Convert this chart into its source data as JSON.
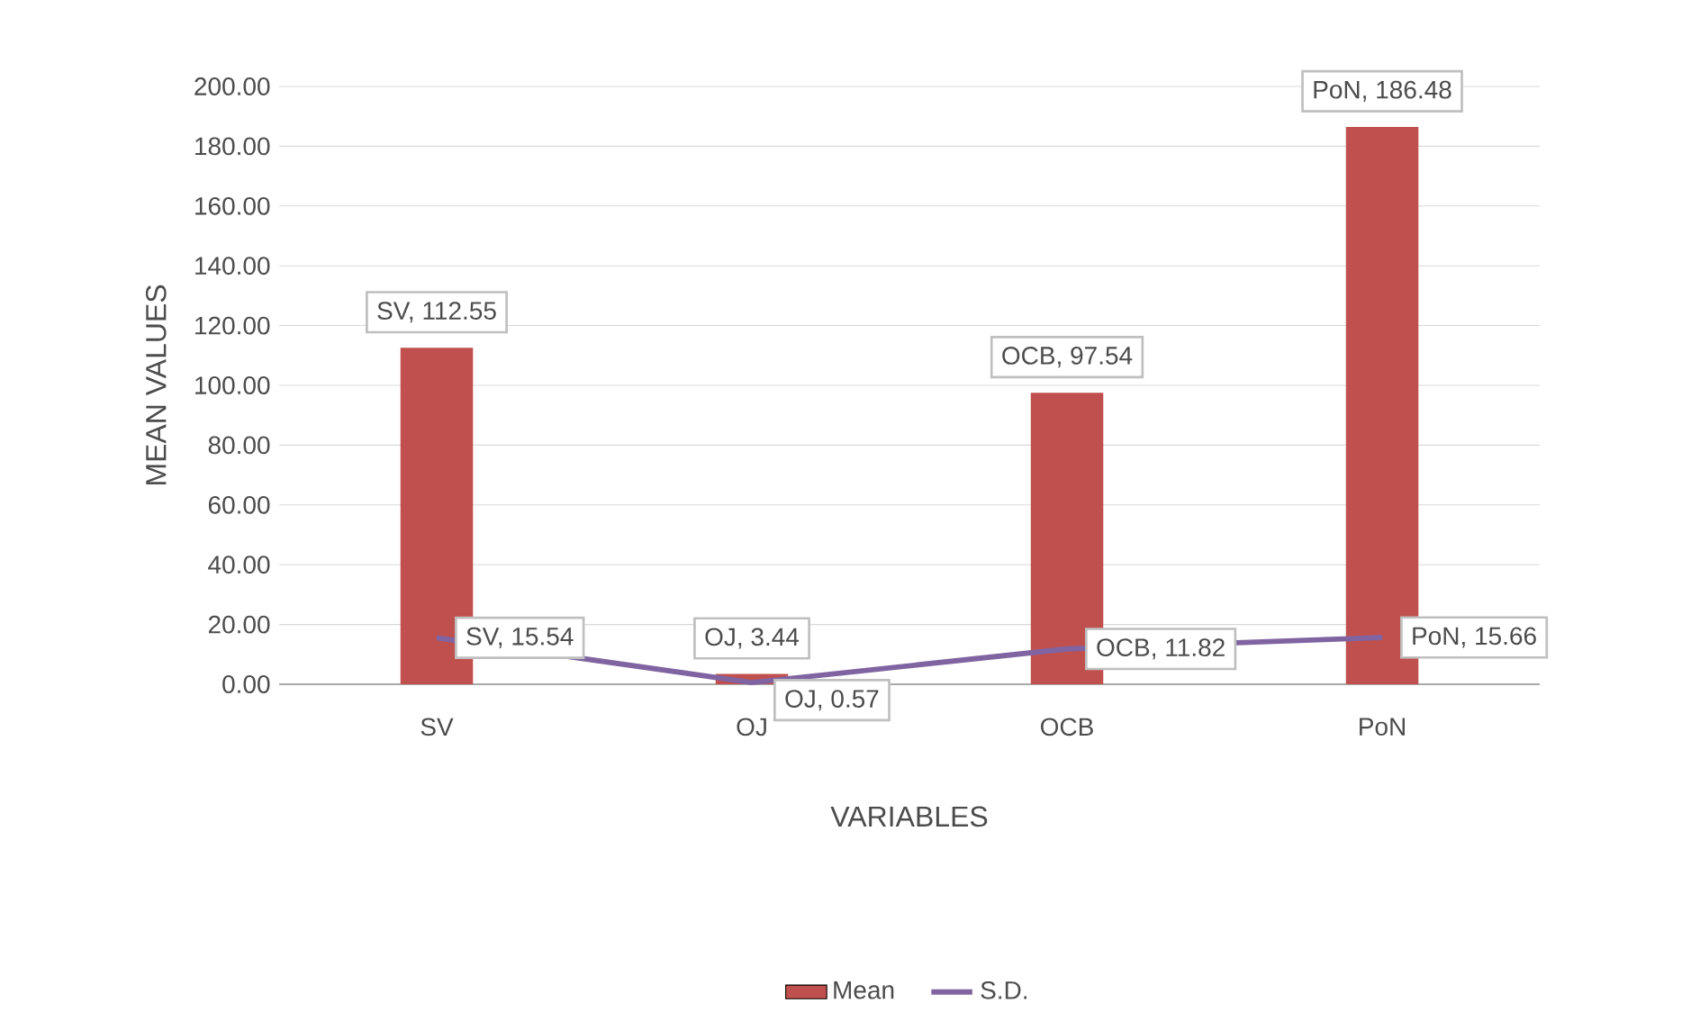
{
  "chart_data": {
    "type": "bar",
    "xlabel": "VARIABLES",
    "ylabel": "MEAN VALUES",
    "categories": [
      "SV",
      "OJ",
      "OCB",
      "PoN"
    ],
    "series": [
      {
        "name": "Mean",
        "color": "#c0504d",
        "values": [
          112.55,
          3.44,
          97.54,
          186.48
        ],
        "value_labels": [
          "SV, 112.55",
          "OJ, 3.44",
          "OCB, 97.54",
          "PoN, 186.48"
        ]
      },
      {
        "name": "S.D.",
        "type": "line",
        "color": "#8064a2",
        "values": [
          15.54,
          0.57,
          11.82,
          15.66
        ],
        "value_labels": [
          "SV, 15.54",
          "OJ, 0.57",
          "OCB, 11.82",
          "PoN, 15.66"
        ]
      }
    ],
    "ylim": [
      0,
      200
    ],
    "yticks": [
      {
        "value": 0,
        "label": "0.00"
      },
      {
        "value": 20,
        "label": "20.00"
      },
      {
        "value": 40,
        "label": "40.00"
      },
      {
        "value": 60,
        "label": "60.00"
      },
      {
        "value": 80,
        "label": "80.00"
      },
      {
        "value": 100,
        "label": "100.00"
      },
      {
        "value": 120,
        "label": "120.00"
      },
      {
        "value": 140,
        "label": "140.00"
      },
      {
        "value": 160,
        "label": "160.00"
      },
      {
        "value": 180,
        "label": "180.00"
      },
      {
        "value": 200,
        "label": "200.00"
      }
    ],
    "grid": "y",
    "legend": "bottom",
    "marker": "none",
    "line_style": "solid"
  }
}
